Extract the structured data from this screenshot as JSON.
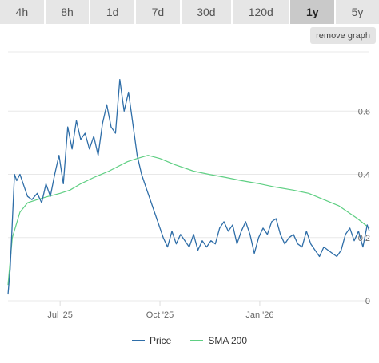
{
  "tabs": [
    {
      "label": "4h",
      "active": false
    },
    {
      "label": "8h",
      "active": false
    },
    {
      "label": "1d",
      "active": false
    },
    {
      "label": "7d",
      "active": false
    },
    {
      "label": "30d",
      "active": false
    },
    {
      "label": "120d",
      "active": false
    },
    {
      "label": "1y",
      "active": true
    },
    {
      "label": "5y",
      "active": false
    }
  ],
  "remove_graph_label": "remove graph",
  "colors": {
    "price": "#2f6ea8",
    "sma": "#5fcf83",
    "grid": "#e8e8e8"
  },
  "legend": [
    {
      "label": "Price",
      "color": "#2f6ea8"
    },
    {
      "label": "SMA 200",
      "color": "#5fcf83"
    }
  ],
  "chart_data": {
    "type": "line",
    "y_ticks": [
      "0",
      "0.2",
      "0.4",
      "0.6"
    ],
    "y_tick_values": [
      0,
      0.2,
      0.4,
      0.6
    ],
    "ylim": [
      0,
      0.8
    ],
    "x_ticks": [
      "Jul '25",
      "Oct '25",
      "Jan '26"
    ],
    "x_tick_dates": [
      "2025-07-01",
      "2025-10-01",
      "2026-01-01"
    ],
    "xlim": [
      "2025-05-14",
      "2026-04-12"
    ],
    "grid": true,
    "legend_position": "bottom",
    "series": [
      {
        "name": "Price",
        "x": [
          "2025-05-14",
          "2025-05-16",
          "2025-05-18",
          "2025-05-20",
          "2025-05-22",
          "2025-05-25",
          "2025-05-28",
          "2025-06-01",
          "2025-06-05",
          "2025-06-10",
          "2025-06-14",
          "2025-06-18",
          "2025-06-22",
          "2025-06-26",
          "2025-06-30",
          "2025-07-04",
          "2025-07-08",
          "2025-07-12",
          "2025-07-16",
          "2025-07-20",
          "2025-07-24",
          "2025-07-28",
          "2025-08-01",
          "2025-08-05",
          "2025-08-09",
          "2025-08-13",
          "2025-08-17",
          "2025-08-21",
          "2025-08-25",
          "2025-08-29",
          "2025-09-02",
          "2025-09-06",
          "2025-09-10",
          "2025-09-14",
          "2025-09-18",
          "2025-09-22",
          "2025-09-26",
          "2025-09-30",
          "2025-10-04",
          "2025-10-08",
          "2025-10-12",
          "2025-10-16",
          "2025-10-20",
          "2025-10-24",
          "2025-10-28",
          "2025-11-01",
          "2025-11-05",
          "2025-11-09",
          "2025-11-13",
          "2025-11-17",
          "2025-11-21",
          "2025-11-25",
          "2025-11-29",
          "2025-12-03",
          "2025-12-07",
          "2025-12-11",
          "2025-12-15",
          "2025-12-19",
          "2025-12-23",
          "2025-12-27",
          "2025-12-31",
          "2026-01-04",
          "2026-01-08",
          "2026-01-12",
          "2026-01-16",
          "2026-01-20",
          "2026-01-24",
          "2026-01-28",
          "2026-02-01",
          "2026-02-05",
          "2026-02-09",
          "2026-02-13",
          "2026-02-17",
          "2026-02-21",
          "2026-02-25",
          "2026-03-01",
          "2026-03-05",
          "2026-03-09",
          "2026-03-13",
          "2026-03-17",
          "2026-03-21",
          "2026-03-25",
          "2026-03-29",
          "2026-04-02",
          "2026-04-06",
          "2026-04-10",
          "2026-04-12"
        ],
        "y": [
          0.02,
          0.1,
          0.25,
          0.4,
          0.38,
          0.4,
          0.37,
          0.33,
          0.32,
          0.34,
          0.31,
          0.37,
          0.33,
          0.4,
          0.46,
          0.37,
          0.55,
          0.48,
          0.57,
          0.51,
          0.53,
          0.48,
          0.52,
          0.46,
          0.56,
          0.62,
          0.55,
          0.53,
          0.7,
          0.6,
          0.66,
          0.56,
          0.46,
          0.4,
          0.36,
          0.32,
          0.28,
          0.24,
          0.2,
          0.17,
          0.22,
          0.18,
          0.21,
          0.19,
          0.17,
          0.21,
          0.16,
          0.19,
          0.17,
          0.19,
          0.18,
          0.23,
          0.25,
          0.22,
          0.24,
          0.18,
          0.22,
          0.25,
          0.21,
          0.15,
          0.2,
          0.23,
          0.21,
          0.25,
          0.26,
          0.21,
          0.18,
          0.2,
          0.21,
          0.18,
          0.17,
          0.22,
          0.18,
          0.16,
          0.14,
          0.17,
          0.16,
          0.15,
          0.14,
          0.16,
          0.21,
          0.23,
          0.19,
          0.22,
          0.17,
          0.24,
          0.22
        ]
      },
      {
        "name": "SMA 200",
        "x": [
          "2025-05-14",
          "2025-05-18",
          "2025-05-25",
          "2025-06-01",
          "2025-06-10",
          "2025-06-20",
          "2025-07-01",
          "2025-07-10",
          "2025-07-20",
          "2025-08-01",
          "2025-08-15",
          "2025-09-01",
          "2025-09-10",
          "2025-09-20",
          "2025-10-01",
          "2025-10-15",
          "2025-11-01",
          "2025-11-15",
          "2025-12-01",
          "2025-12-15",
          "2026-01-01",
          "2026-01-15",
          "2026-02-01",
          "2026-02-15",
          "2026-03-01",
          "2026-03-15",
          "2026-04-01",
          "2026-04-12"
        ],
        "y": [
          0.05,
          0.2,
          0.28,
          0.31,
          0.32,
          0.33,
          0.34,
          0.35,
          0.37,
          0.39,
          0.41,
          0.44,
          0.45,
          0.46,
          0.45,
          0.43,
          0.41,
          0.4,
          0.39,
          0.38,
          0.37,
          0.36,
          0.35,
          0.34,
          0.32,
          0.3,
          0.26,
          0.23
        ]
      }
    ]
  }
}
